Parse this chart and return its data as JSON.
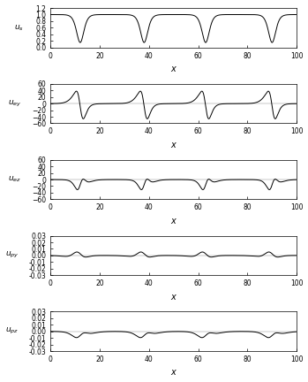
{
  "xlim": [
    0,
    100
  ],
  "panel_configs": [
    {
      "ylabel": "$u_s$",
      "ylim": [
        0,
        1.2
      ],
      "yticks": [
        0,
        0.2,
        0.4,
        0.6,
        0.8,
        1.0,
        1.2
      ]
    },
    {
      "ylabel": "$u_{ey}$",
      "ylim": [
        -60,
        60
      ],
      "yticks": [
        -60,
        -40,
        -20,
        0,
        20,
        40,
        60
      ]
    },
    {
      "ylabel": "$u_{ez}$",
      "ylim": [
        -60,
        60
      ],
      "yticks": [
        -60,
        -40,
        -20,
        0,
        20,
        40,
        60
      ]
    },
    {
      "ylabel": "$u_{py}$",
      "ylim": [
        -0.03,
        0.03
      ],
      "yticks": [
        -0.03,
        -0.02,
        -0.01,
        0,
        0.01,
        0.02,
        0.03
      ]
    },
    {
      "ylabel": "$u_{pz}$",
      "ylim": [
        -0.03,
        0.03
      ],
      "yticks": [
        -0.03,
        -0.02,
        -0.01,
        0,
        0.01,
        0.02,
        0.03
      ]
    }
  ],
  "xticks": [
    0,
    20,
    40,
    60,
    80,
    100
  ],
  "xlabel": "$x$",
  "line_color": "#000000",
  "line_width": 0.7,
  "background_color": "#ffffff",
  "figsize": [
    3.49,
    4.32
  ],
  "dpi": 100
}
